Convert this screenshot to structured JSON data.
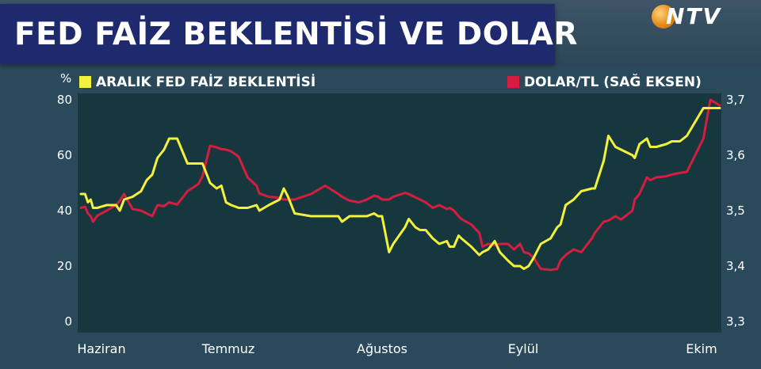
{
  "title": "FED FAİZ BEKLENTİSİ VE DOLAR",
  "logo_text": "NTV",
  "colors": {
    "yellow": "#f2f23a",
    "red": "#d51d3f",
    "title_bg": "#1f2a6e",
    "plot_bg": "#17373f"
  },
  "chart_data": {
    "type": "line",
    "left_axis_unit": "%",
    "left_ticks": [
      "0",
      "20",
      "40",
      "60",
      "80"
    ],
    "right_ticks": [
      "3,3",
      "3,4",
      "3,5",
      "3,6",
      "3,7"
    ],
    "x_labels": [
      "Haziran",
      "Temmuz",
      "Ağustos",
      "Eylül",
      "Ekim"
    ],
    "left_ylim": [
      0,
      80
    ],
    "right_ylim": [
      3.3,
      3.7
    ],
    "series": [
      {
        "name": "ARALIK FED FAİZ BEKLENTİSİ",
        "axis": "left",
        "color": "#f2f23a",
        "points": [
          [
            0.0,
            46
          ],
          [
            0.9,
            46
          ],
          [
            1.5,
            43
          ],
          [
            2.1,
            44
          ],
          [
            2.6,
            41
          ],
          [
            3.5,
            41
          ],
          [
            5.5,
            42
          ],
          [
            7.5,
            42
          ],
          [
            8.3,
            40
          ],
          [
            9.2,
            44
          ],
          [
            11,
            45
          ],
          [
            12.8,
            47
          ],
          [
            14,
            51
          ],
          [
            15.2,
            53
          ],
          [
            16.3,
            59
          ],
          [
            17.7,
            62
          ],
          [
            18.8,
            66
          ],
          [
            20.5,
            66
          ],
          [
            22.7,
            57
          ],
          [
            25,
            57
          ],
          [
            25.9,
            57
          ],
          [
            27.5,
            50
          ],
          [
            28.9,
            48
          ],
          [
            29.9,
            49
          ],
          [
            30.9,
            43
          ],
          [
            32,
            42
          ],
          [
            33.6,
            41
          ],
          [
            35.5,
            41
          ],
          [
            37.4,
            42
          ],
          [
            38,
            40
          ],
          [
            40,
            42
          ],
          [
            42.3,
            44
          ],
          [
            43.2,
            48
          ],
          [
            44.1,
            45
          ],
          [
            45.5,
            39
          ],
          [
            49,
            38
          ],
          [
            52,
            38
          ],
          [
            54.8,
            38
          ],
          [
            55.6,
            36
          ],
          [
            57.2,
            38
          ],
          [
            59.2,
            38
          ],
          [
            60.9,
            38
          ],
          [
            62.4,
            39
          ],
          [
            63.3,
            38
          ],
          [
            64.1,
            38
          ],
          [
            65.6,
            25
          ],
          [
            66.5,
            28
          ],
          [
            69,
            34
          ],
          [
            69.8,
            37
          ],
          [
            71.2,
            34
          ],
          [
            72.2,
            33
          ],
          [
            73.4,
            33
          ],
          [
            74.9,
            30
          ],
          [
            76.3,
            28
          ],
          [
            77.9,
            29
          ],
          [
            78.5,
            27
          ],
          [
            79.4,
            27
          ],
          [
            80.4,
            31
          ],
          [
            81,
            30
          ],
          [
            83.1,
            27
          ],
          [
            84.8,
            24
          ],
          [
            85.5,
            25
          ],
          [
            86.7,
            26
          ],
          [
            88.1,
            29
          ],
          [
            89.2,
            25
          ],
          [
            90.9,
            22
          ],
          [
            92.2,
            20
          ],
          [
            93.5,
            20
          ],
          [
            94.3,
            19
          ],
          [
            95.3,
            20
          ],
          [
            96.4,
            23
          ],
          [
            97.9,
            28
          ],
          [
            100,
            30
          ],
          [
            101.4,
            34
          ],
          [
            102.1,
            35
          ],
          [
            103.2,
            42
          ],
          [
            104.9,
            44
          ],
          [
            106.5,
            47
          ],
          [
            108.8,
            48
          ],
          [
            109.4,
            48
          ],
          [
            111.3,
            58
          ],
          [
            112.3,
            67
          ],
          [
            113.8,
            63
          ],
          [
            115,
            62
          ],
          [
            117.4,
            60
          ],
          [
            117.9,
            59
          ],
          [
            118.9,
            64
          ],
          [
            120.5,
            66
          ],
          [
            121.2,
            63
          ],
          [
            122.5,
            63
          ],
          [
            124.6,
            64
          ],
          [
            125.8,
            65
          ],
          [
            127.5,
            65
          ],
          [
            129,
            67
          ],
          [
            132.5,
            77
          ],
          [
            136,
            77
          ]
        ]
      },
      {
        "name": "DOLAR/TL (SAĞ EKSEN)",
        "axis": "right",
        "color": "#d51d3f",
        "points": [
          [
            0.0,
            3.505
          ],
          [
            0.9,
            3.507
          ],
          [
            1.5,
            3.495
          ],
          [
            2.1,
            3.49
          ],
          [
            2.6,
            3.48
          ],
          [
            3.5,
            3.491
          ],
          [
            5.5,
            3.5
          ],
          [
            7.5,
            3.51
          ],
          [
            8.3,
            3.518
          ],
          [
            9.2,
            3.53
          ],
          [
            11,
            3.503
          ],
          [
            12.8,
            3.5
          ],
          [
            14,
            3.495
          ],
          [
            15.2,
            3.49
          ],
          [
            16.3,
            3.51
          ],
          [
            17.7,
            3.508
          ],
          [
            18.8,
            3.515
          ],
          [
            20.5,
            3.511
          ],
          [
            22.7,
            3.535
          ],
          [
            25,
            3.548
          ],
          [
            25.9,
            3.562
          ],
          [
            27.5,
            3.617
          ],
          [
            28.9,
            3.614
          ],
          [
            29.9,
            3.611
          ],
          [
            30.9,
            3.61
          ],
          [
            32,
            3.607
          ],
          [
            33.6,
            3.597
          ],
          [
            35.5,
            3.56
          ],
          [
            37.4,
            3.545
          ],
          [
            38,
            3.531
          ],
          [
            40,
            3.525
          ],
          [
            42.3,
            3.523
          ],
          [
            43.2,
            3.52
          ],
          [
            44.1,
            3.52
          ],
          [
            45.5,
            3.52
          ],
          [
            49,
            3.53
          ],
          [
            52,
            3.545
          ],
          [
            54.8,
            3.53
          ],
          [
            55.6,
            3.525
          ],
          [
            57.2,
            3.518
          ],
          [
            59.2,
            3.515
          ],
          [
            60.9,
            3.52
          ],
          [
            62.4,
            3.527
          ],
          [
            63.3,
            3.525
          ],
          [
            64.1,
            3.52
          ],
          [
            65.6,
            3.52
          ],
          [
            66.5,
            3.525
          ],
          [
            69,
            3.532
          ],
          [
            69.8,
            3.53
          ],
          [
            71.2,
            3.524
          ],
          [
            72.2,
            3.52
          ],
          [
            73.4,
            3.515
          ],
          [
            74.9,
            3.505
          ],
          [
            76.3,
            3.51
          ],
          [
            77.9,
            3.503
          ],
          [
            78.5,
            3.505
          ],
          [
            79.4,
            3.5
          ],
          [
            80.4,
            3.49
          ],
          [
            81,
            3.485
          ],
          [
            83.1,
            3.475
          ],
          [
            84.8,
            3.46
          ],
          [
            85.5,
            3.435
          ],
          [
            86.7,
            3.44
          ],
          [
            88.1,
            3.438
          ],
          [
            89.2,
            3.44
          ],
          [
            90.9,
            3.44
          ],
          [
            92.2,
            3.43
          ],
          [
            93.5,
            3.44
          ],
          [
            94.3,
            3.425
          ],
          [
            95.3,
            3.423
          ],
          [
            96.4,
            3.415
          ],
          [
            97.9,
            3.395
          ],
          [
            100,
            3.393
          ],
          [
            101.4,
            3.395
          ],
          [
            102.1,
            3.41
          ],
          [
            103.2,
            3.42
          ],
          [
            104.9,
            3.43
          ],
          [
            106.5,
            3.425
          ],
          [
            108.8,
            3.45
          ],
          [
            109.4,
            3.46
          ],
          [
            111.3,
            3.48
          ],
          [
            112.3,
            3.482
          ],
          [
            113.8,
            3.49
          ],
          [
            115,
            3.484
          ],
          [
            117.4,
            3.5
          ],
          [
            117.9,
            3.52
          ],
          [
            118.9,
            3.53
          ],
          [
            120.5,
            3.56
          ],
          [
            121.2,
            3.555
          ],
          [
            122.5,
            3.56
          ],
          [
            124.6,
            3.562
          ],
          [
            125.8,
            3.565
          ],
          [
            127.5,
            3.568
          ],
          [
            129,
            3.57
          ],
          [
            132.5,
            3.63
          ],
          [
            134,
            3.7
          ],
          [
            136,
            3.69
          ]
        ]
      }
    ]
  }
}
